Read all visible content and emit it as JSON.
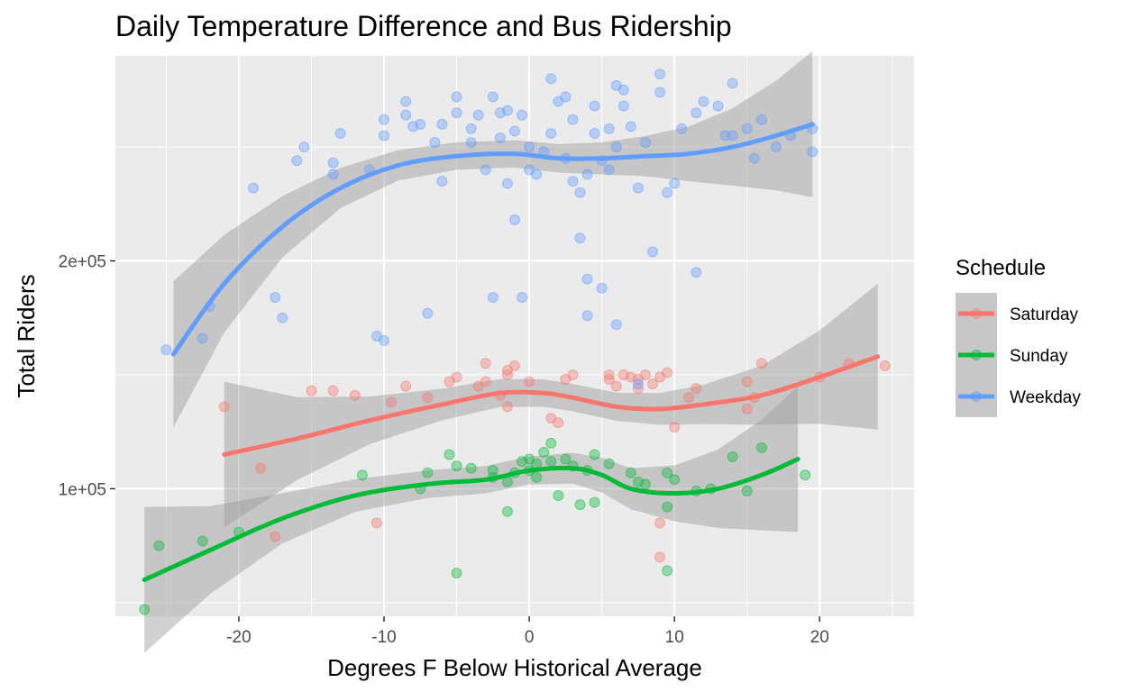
{
  "chart_data": {
    "type": "scatter",
    "title": "Daily Temperature Difference and Bus Ridership",
    "xlabel": "Degrees F Below Historical Average",
    "ylabel": "Total Riders",
    "xlim": [
      -28.5,
      26.5
    ],
    "ylim": [
      44000,
      290000
    ],
    "x_ticks": [
      -20,
      -10,
      0,
      10,
      20
    ],
    "x_tick_labels": [
      "-20",
      "-10",
      "0",
      "10",
      "20"
    ],
    "y_ticks": [
      100000,
      200000
    ],
    "y_tick_labels": [
      "1e+05",
      "2e+05"
    ],
    "grid": true,
    "legend": {
      "title": "Schedule",
      "position": "right"
    },
    "smoothing": "loess with confidence band",
    "series": [
      {
        "name": "Saturday",
        "color": "#F8766D",
        "points": [
          [
            -21,
            136000
          ],
          [
            -18.5,
            109000
          ],
          [
            -17.5,
            79000
          ],
          [
            -15,
            143000
          ],
          [
            -13.5,
            143000
          ],
          [
            -12,
            141000
          ],
          [
            -10.5,
            85000
          ],
          [
            -9.5,
            138000
          ],
          [
            -8.5,
            145000
          ],
          [
            -7,
            140000
          ],
          [
            -5.5,
            147000
          ],
          [
            -5,
            149000
          ],
          [
            -3.5,
            145000
          ],
          [
            -3,
            147000
          ],
          [
            -3,
            155000
          ],
          [
            -2,
            141000
          ],
          [
            -1.5,
            150000
          ],
          [
            -1.5,
            152000
          ],
          [
            -1.5,
            136000
          ],
          [
            -1,
            154000
          ],
          [
            0,
            147000
          ],
          [
            1.5,
            131000
          ],
          [
            2,
            129000
          ],
          [
            2.5,
            148000
          ],
          [
            3,
            150000
          ],
          [
            5.5,
            150000
          ],
          [
            5.5,
            148000
          ],
          [
            6,
            145000
          ],
          [
            6.5,
            150000
          ],
          [
            7,
            149000
          ],
          [
            7.5,
            148000
          ],
          [
            7.5,
            144000
          ],
          [
            8,
            150000
          ],
          [
            8.5,
            146000
          ],
          [
            9,
            149000
          ],
          [
            9.5,
            151000
          ],
          [
            9,
            85000
          ],
          [
            9,
            70000
          ],
          [
            10,
            127000
          ],
          [
            11,
            140000
          ],
          [
            11.5,
            144000
          ],
          [
            15,
            135000
          ],
          [
            15,
            147000
          ],
          [
            15.5,
            140000
          ],
          [
            16,
            155000
          ],
          [
            20,
            149000
          ],
          [
            22,
            155000
          ],
          [
            24.5,
            154000
          ]
        ],
        "smooth": [
          [
            -21,
            115000
          ],
          [
            -16,
            122000
          ],
          [
            -11,
            130000
          ],
          [
            -6,
            137000
          ],
          [
            -2,
            142000
          ],
          [
            1,
            142000
          ],
          [
            3,
            140000
          ],
          [
            6,
            136000
          ],
          [
            9,
            135000
          ],
          [
            12,
            137000
          ],
          [
            16,
            141000
          ],
          [
            20,
            149000
          ],
          [
            24,
            158000
          ]
        ]
      },
      {
        "name": "Sunday",
        "color": "#00BA38",
        "points": [
          [
            -26.5,
            47000
          ],
          [
            -25.5,
            75000
          ],
          [
            -22.5,
            77000
          ],
          [
            -20,
            81000
          ],
          [
            -11.5,
            106000
          ],
          [
            -7,
            107000
          ],
          [
            -7.5,
            100000
          ],
          [
            -5.5,
            115000
          ],
          [
            -5,
            110000
          ],
          [
            -5,
            63000
          ],
          [
            -4,
            109000
          ],
          [
            -2.5,
            108000
          ],
          [
            -2.5,
            105000
          ],
          [
            -1.5,
            90000
          ],
          [
            -1.5,
            103000
          ],
          [
            -1,
            107000
          ],
          [
            -0.5,
            112000
          ],
          [
            0,
            113000
          ],
          [
            0,
            108000
          ],
          [
            0.5,
            111000
          ],
          [
            0.5,
            105000
          ],
          [
            1,
            116000
          ],
          [
            1.5,
            120000
          ],
          [
            1.5,
            112000
          ],
          [
            2,
            97000
          ],
          [
            2.5,
            113000
          ],
          [
            3,
            110000
          ],
          [
            3.5,
            93000
          ],
          [
            4,
            108000
          ],
          [
            4.5,
            94000
          ],
          [
            4.5,
            115000
          ],
          [
            5.5,
            111000
          ],
          [
            7,
            107000
          ],
          [
            7.5,
            103000
          ],
          [
            8,
            102000
          ],
          [
            9.5,
            107000
          ],
          [
            9.5,
            92000
          ],
          [
            9.5,
            64000
          ],
          [
            10,
            104000
          ],
          [
            11.5,
            99000
          ],
          [
            12.5,
            100000
          ],
          [
            14,
            114000
          ],
          [
            15,
            99000
          ],
          [
            16,
            118000
          ],
          [
            19,
            106000
          ]
        ],
        "smooth": [
          [
            -26.5,
            60000
          ],
          [
            -22,
            73000
          ],
          [
            -17,
            87000
          ],
          [
            -12,
            97000
          ],
          [
            -7,
            102000
          ],
          [
            -3,
            104000
          ],
          [
            0,
            108000
          ],
          [
            3,
            109000
          ],
          [
            5,
            106000
          ],
          [
            7,
            100000
          ],
          [
            10,
            98000
          ],
          [
            13,
            100000
          ],
          [
            16,
            106000
          ],
          [
            18.5,
            113000
          ]
        ]
      },
      {
        "name": "Weekday",
        "color": "#619CFF",
        "points": [
          [
            -25,
            161000
          ],
          [
            -22.5,
            166000
          ],
          [
            -22,
            180000
          ],
          [
            -19,
            232000
          ],
          [
            -17.5,
            184000
          ],
          [
            -17,
            175000
          ],
          [
            -16,
            244000
          ],
          [
            -15.5,
            250000
          ],
          [
            -13.5,
            238000
          ],
          [
            -13.5,
            243000
          ],
          [
            -13,
            256000
          ],
          [
            -11,
            240000
          ],
          [
            -10.5,
            167000
          ],
          [
            -10,
            165000
          ],
          [
            -10,
            255000
          ],
          [
            -10,
            262000
          ],
          [
            -8.5,
            264000
          ],
          [
            -8.5,
            270000
          ],
          [
            -8,
            259000
          ],
          [
            -7.5,
            260000
          ],
          [
            -7,
            177000
          ],
          [
            -6.5,
            252000
          ],
          [
            -6,
            235000
          ],
          [
            -6,
            260000
          ],
          [
            -5,
            272000
          ],
          [
            -5,
            265000
          ],
          [
            -4,
            258000
          ],
          [
            -4,
            252000
          ],
          [
            -3.5,
            264000
          ],
          [
            -3,
            240000
          ],
          [
            -2.5,
            184000
          ],
          [
            -2.5,
            272000
          ],
          [
            -2,
            265000
          ],
          [
            -2,
            254000
          ],
          [
            -1.5,
            234000
          ],
          [
            -1.5,
            266000
          ],
          [
            -1,
            218000
          ],
          [
            -1,
            257000
          ],
          [
            -0.5,
            184000
          ],
          [
            -0.5,
            264000
          ],
          [
            0,
            240000
          ],
          [
            0,
            250000
          ],
          [
            0.5,
            238000
          ],
          [
            1,
            248000
          ],
          [
            1.5,
            280000
          ],
          [
            1.5,
            256000
          ],
          [
            2,
            270000
          ],
          [
            2.5,
            272000
          ],
          [
            2.5,
            245000
          ],
          [
            3,
            235000
          ],
          [
            3,
            262000
          ],
          [
            3.5,
            230000
          ],
          [
            3.5,
            210000
          ],
          [
            4,
            176000
          ],
          [
            4,
            192000
          ],
          [
            4,
            238000
          ],
          [
            4.5,
            268000
          ],
          [
            4.5,
            256000
          ],
          [
            5,
            188000
          ],
          [
            5,
            244000
          ],
          [
            5.5,
            258000
          ],
          [
            5.5,
            240000
          ],
          [
            6,
            172000
          ],
          [
            6,
            277000
          ],
          [
            6,
            250000
          ],
          [
            6.5,
            275000
          ],
          [
            6.5,
            268000
          ],
          [
            7,
            259000
          ],
          [
            7.5,
            232000
          ],
          [
            7.5,
            146000
          ],
          [
            8,
            252000
          ],
          [
            8.5,
            204000
          ],
          [
            9,
            274000
          ],
          [
            9,
            282000
          ],
          [
            9.5,
            230000
          ],
          [
            10,
            234000
          ],
          [
            10.5,
            258000
          ],
          [
            11.5,
            195000
          ],
          [
            11.5,
            265000
          ],
          [
            12,
            270000
          ],
          [
            13,
            268000
          ],
          [
            13.5,
            255000
          ],
          [
            14,
            278000
          ],
          [
            14,
            255000
          ],
          [
            15,
            258000
          ],
          [
            15.5,
            245000
          ],
          [
            16,
            262000
          ],
          [
            17,
            250000
          ],
          [
            18,
            255000
          ],
          [
            19.5,
            258000
          ],
          [
            19.5,
            248000
          ]
        ],
        "smooth": [
          [
            -24.5,
            159000
          ],
          [
            -21,
            190000
          ],
          [
            -17,
            215000
          ],
          [
            -13,
            232000
          ],
          [
            -9,
            242000
          ],
          [
            -5,
            246000
          ],
          [
            -1,
            247000
          ],
          [
            2,
            245000
          ],
          [
            5,
            245000
          ],
          [
            8,
            246000
          ],
          [
            11,
            247000
          ],
          [
            14,
            250000
          ],
          [
            17,
            255000
          ],
          [
            19.5,
            260000
          ]
        ]
      }
    ]
  }
}
